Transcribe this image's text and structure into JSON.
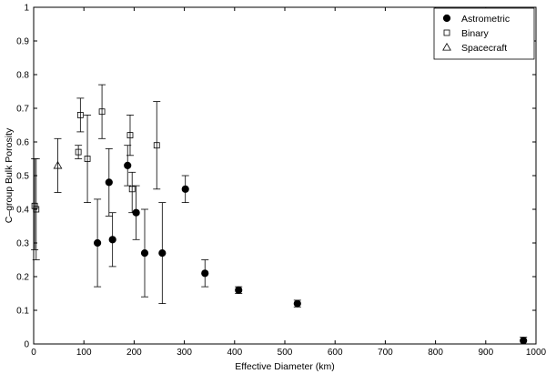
{
  "chart_data": {
    "type": "scatter",
    "xlabel": "Effective Diameter (km)",
    "ylabel": "C–group Bulk Porosity",
    "xlim": [
      0,
      1000
    ],
    "ylim": [
      0,
      1
    ],
    "x_ticks": [
      "0",
      "100",
      "200",
      "300",
      "400",
      "500",
      "600",
      "700",
      "800",
      "900",
      "1000"
    ],
    "y_ticks": [
      "0",
      "0.1",
      "0.2",
      "0.3",
      "0.4",
      "0.5",
      "0.6",
      "0.7",
      "0.8",
      "0.9",
      "1"
    ],
    "grid": false,
    "legend_position": "top-right",
    "series": [
      {
        "name": "Astrometric",
        "marker": "filled-circle",
        "points": [
          {
            "x": 127,
            "y": 0.3,
            "err_low": 0.17,
            "err_high": 0.43
          },
          {
            "x": 150,
            "y": 0.48,
            "err_low": 0.38,
            "err_high": 0.58
          },
          {
            "x": 157,
            "y": 0.31,
            "err_low": 0.23,
            "err_high": 0.39
          },
          {
            "x": 187,
            "y": 0.53,
            "err_low": 0.47,
            "err_high": 0.59
          },
          {
            "x": 204,
            "y": 0.39,
            "err_low": 0.31,
            "err_high": 0.47
          },
          {
            "x": 221,
            "y": 0.27,
            "err_low": 0.14,
            "err_high": 0.4
          },
          {
            "x": 256,
            "y": 0.27,
            "err_low": 0.12,
            "err_high": 0.42
          },
          {
            "x": 302,
            "y": 0.46,
            "err_low": 0.42,
            "err_high": 0.5
          },
          {
            "x": 341,
            "y": 0.21,
            "err_low": 0.17,
            "err_high": 0.25
          },
          {
            "x": 408,
            "y": 0.16,
            "err_low": 0.15,
            "err_high": 0.17
          },
          {
            "x": 525,
            "y": 0.12,
            "err_low": 0.11,
            "err_high": 0.13
          },
          {
            "x": 975,
            "y": 0.01,
            "err_low": 0.0,
            "err_high": 0.02
          }
        ]
      },
      {
        "name": "Binary",
        "marker": "open-square",
        "points": [
          {
            "x": 2,
            "y": 0.41,
            "err_low": 0.28,
            "err_high": 0.55
          },
          {
            "x": 5,
            "y": 0.4,
            "err_low": 0.25,
            "err_high": 0.55
          },
          {
            "x": 89,
            "y": 0.57,
            "err_low": 0.55,
            "err_high": 0.59
          },
          {
            "x": 93,
            "y": 0.68,
            "err_low": 0.63,
            "err_high": 0.73
          },
          {
            "x": 107,
            "y": 0.55,
            "err_low": 0.42,
            "err_high": 0.68
          },
          {
            "x": 136,
            "y": 0.69,
            "err_low": 0.61,
            "err_high": 0.77
          },
          {
            "x": 192,
            "y": 0.62,
            "err_low": 0.56,
            "err_high": 0.68
          },
          {
            "x": 196,
            "y": 0.46,
            "err_low": 0.39,
            "err_high": 0.51
          },
          {
            "x": 245,
            "y": 0.59,
            "err_low": 0.46,
            "err_high": 0.72
          }
        ]
      },
      {
        "name": "Spacecraft",
        "marker": "open-triangle",
        "points": [
          {
            "x": 48,
            "y": 0.53,
            "err_low": 0.45,
            "err_high": 0.61
          }
        ]
      }
    ]
  }
}
